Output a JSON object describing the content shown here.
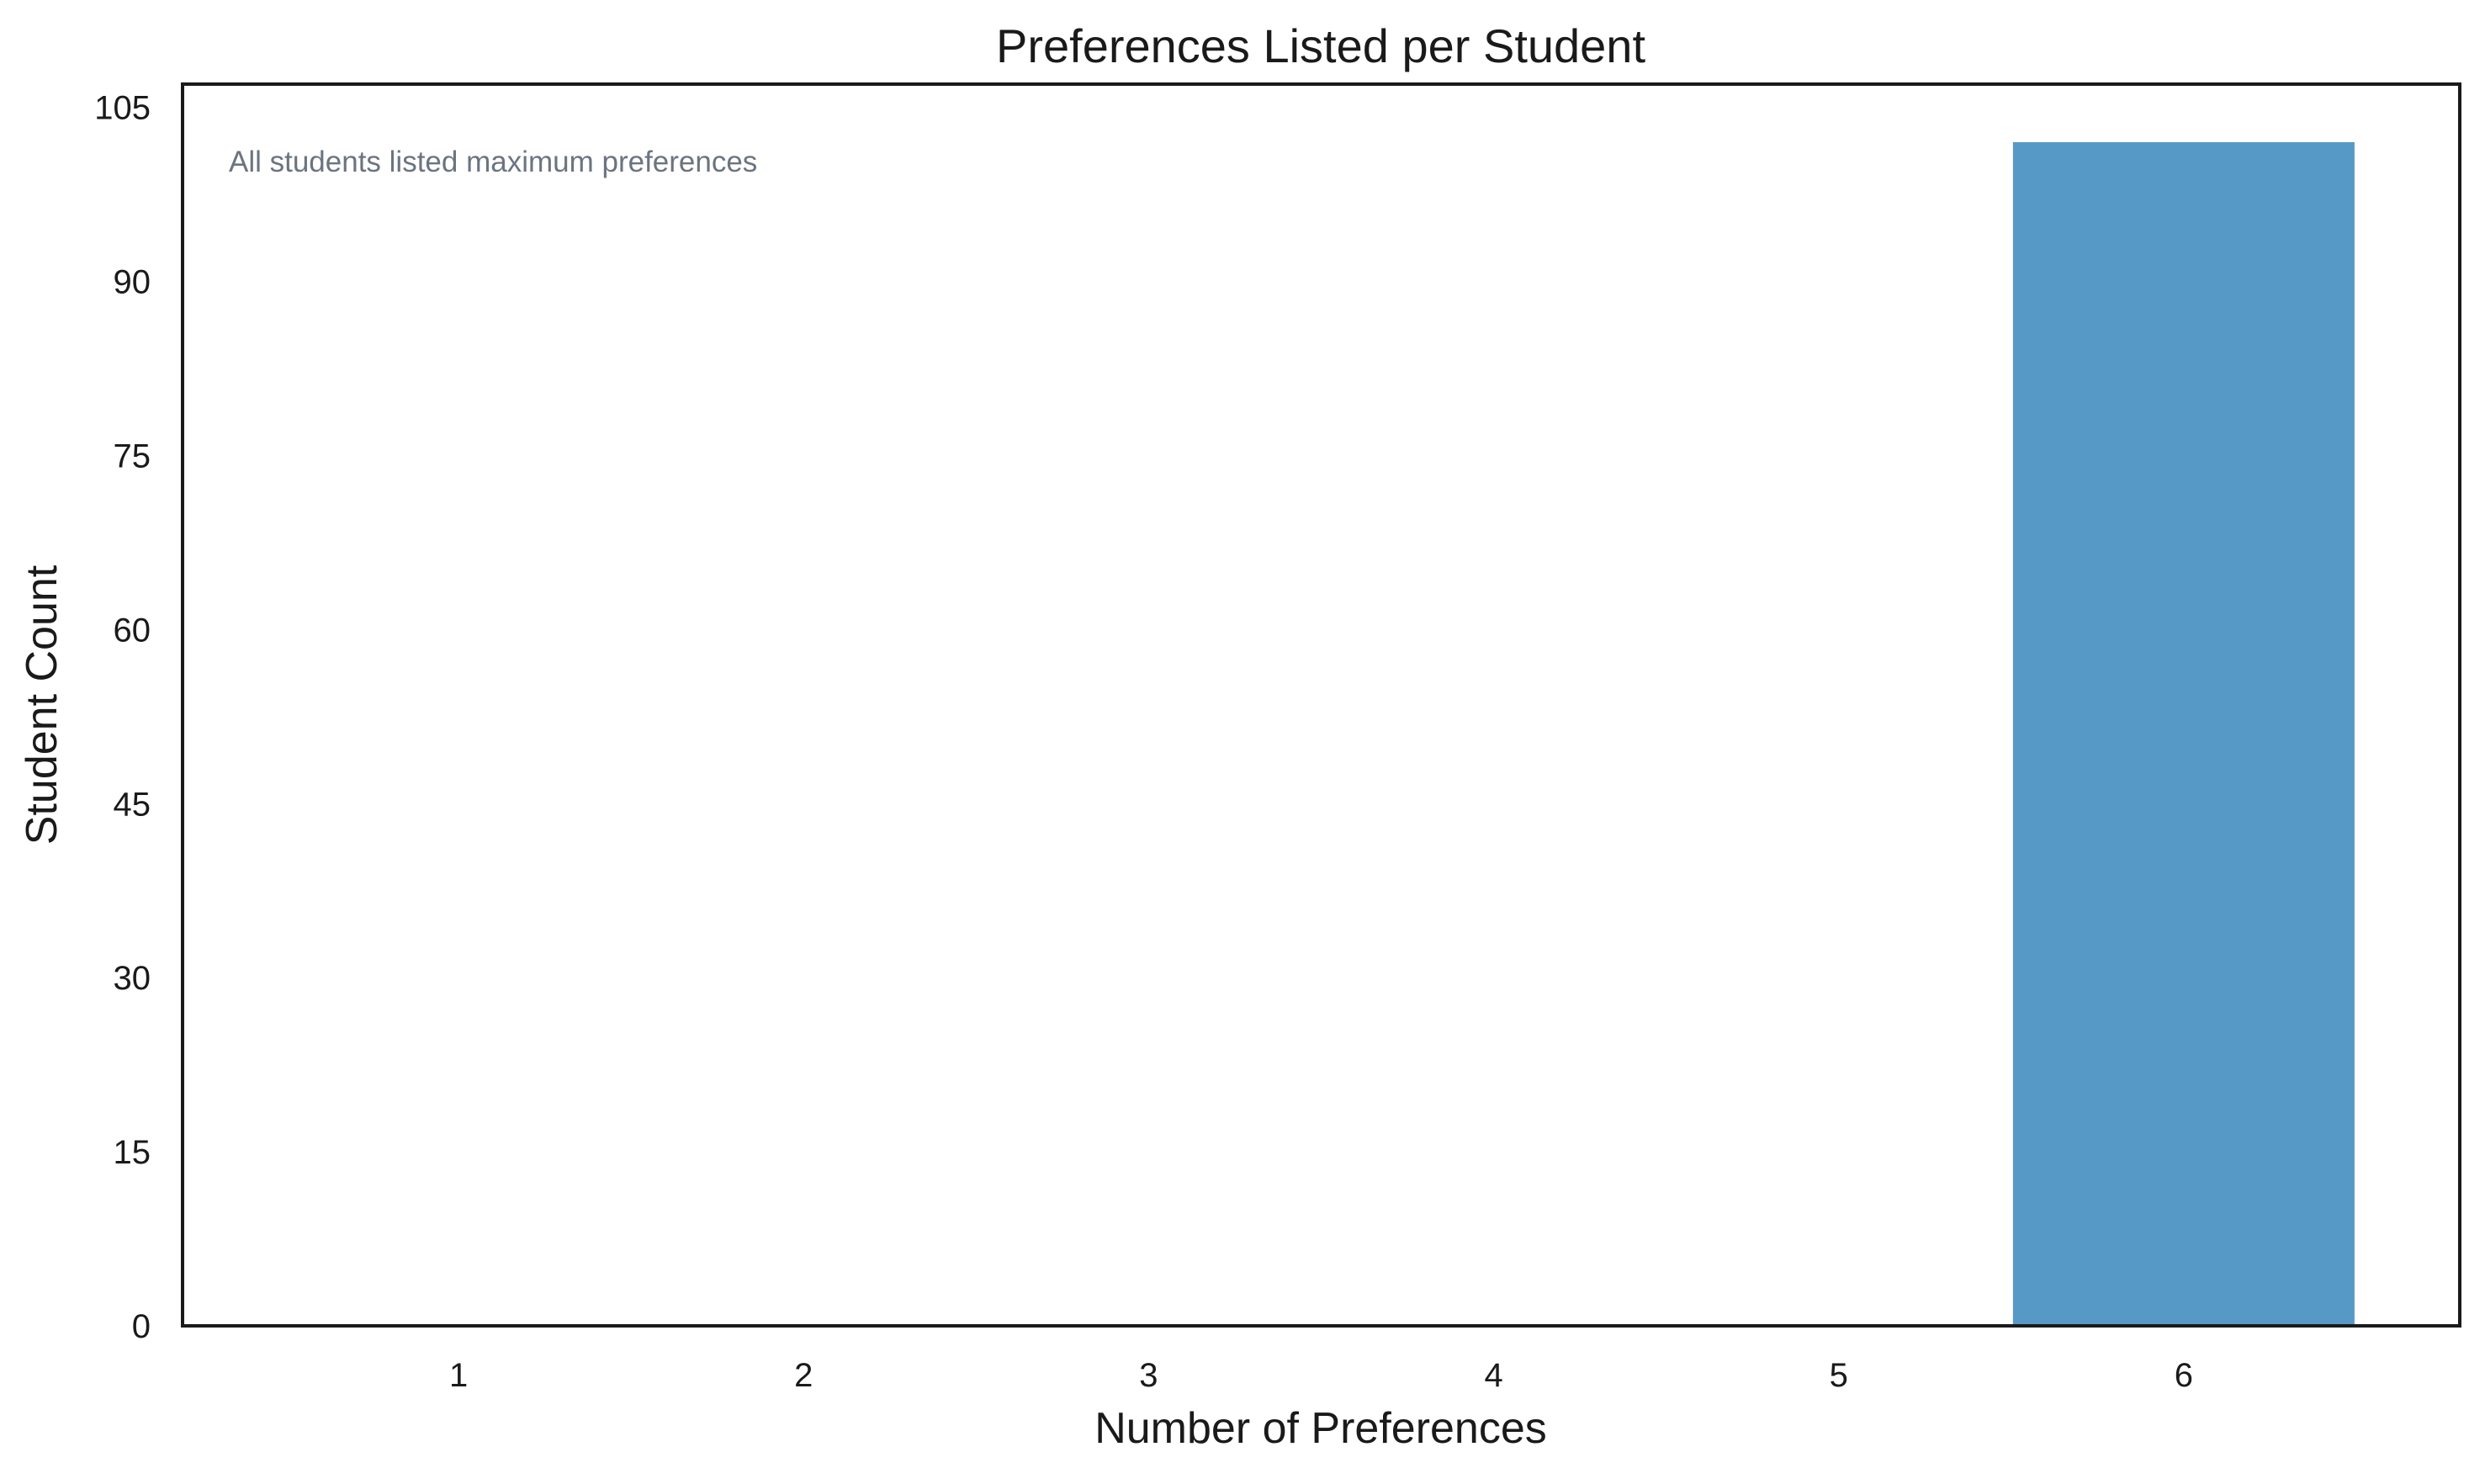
{
  "chart_data": {
    "type": "bar",
    "title": "Preferences Listed per Student",
    "xlabel": "Number of Preferences",
    "ylabel": "Student Count",
    "categories": [
      "1",
      "2",
      "3",
      "4",
      "5",
      "6"
    ],
    "values": [
      0,
      0,
      0,
      0,
      0,
      102
    ],
    "ylim": [
      0,
      107
    ],
    "yticks": [
      0,
      15,
      30,
      45,
      60,
      75,
      90,
      105
    ],
    "annotation": "All students listed maximum preferences",
    "grid": false,
    "legend": "none",
    "bar_color": "#5799c6",
    "frame_color": "#1a1a1a"
  }
}
